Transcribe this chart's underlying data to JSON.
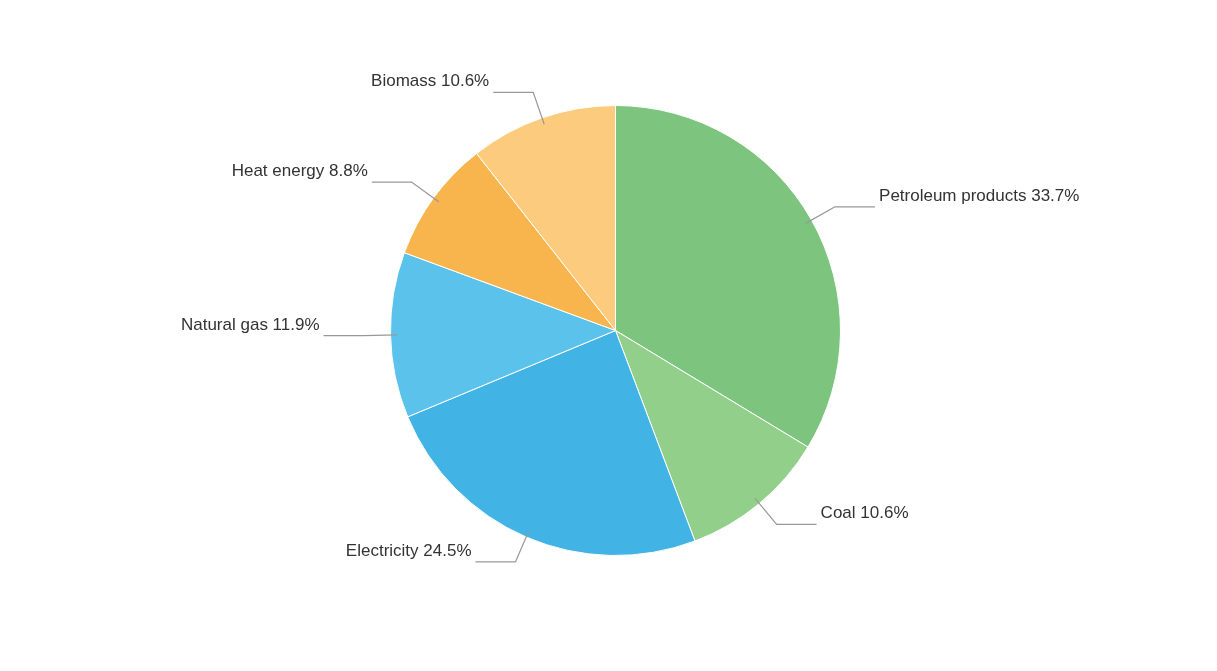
{
  "chart_data": {
    "type": "pie",
    "categories": [
      "Petroleum products",
      "Coal",
      "Electricity",
      "Natural gas",
      "Heat energy",
      "Biomass"
    ],
    "values": [
      33.7,
      10.6,
      24.5,
      11.9,
      8.8,
      10.6
    ],
    "value_labels": [
      "33.7%",
      "10.6%",
      "24.5%",
      "11.9%",
      "8.8%",
      "10.6%"
    ],
    "colors": [
      "#7dc57f",
      "#92cf8a",
      "#41b3e4",
      "#5bc2ec",
      "#f8b54e",
      "#fccb7d"
    ],
    "legend": false
  }
}
